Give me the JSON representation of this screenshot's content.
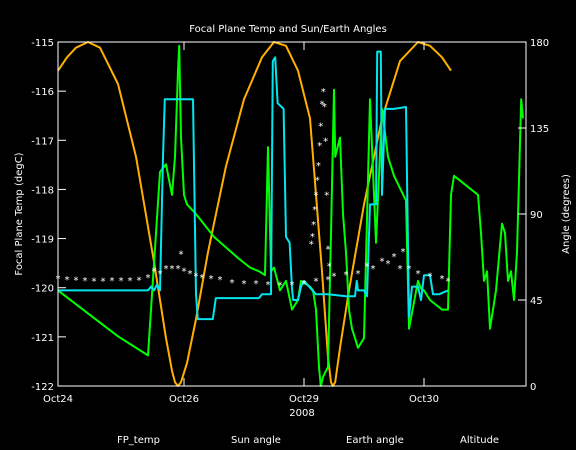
{
  "chart_data": {
    "type": "line",
    "title": "Focal Plane Temp and Sun/Earth Angles",
    "xlabel": "2008",
    "ylabel_left": "Focal Plane Temp (degC)",
    "ylabel_right": "Angle (degrees)",
    "x_range": [
      0,
      7.8
    ],
    "x_ticks": [
      {
        "x": 0.0,
        "label": "Oct24"
      },
      {
        "x": 2.1,
        "label": "Oct26"
      },
      {
        "x": 4.1,
        "label": "Oct29"
      },
      {
        "x": 6.1,
        "label": "Oct30"
      }
    ],
    "ylim_left": [
      -122,
      -115
    ],
    "y_ticks_left": [
      -115,
      -116,
      -117,
      -118,
      -119,
      -120,
      -121,
      -122
    ],
    "y_tick_labels_left": [
      "-115",
      "-116",
      "-117",
      "-118",
      "-119",
      "-120",
      "-121",
      "-122"
    ],
    "ylim_right": [
      0,
      180
    ],
    "y_ticks_right": [
      180,
      135,
      90,
      45,
      0
    ],
    "y_tick_labels_right": [
      "180",
      "135",
      "90",
      "45",
      "0"
    ],
    "grid": false,
    "legend": [
      "FP_temp",
      "Sun angle",
      "Earth angle",
      "Altitude"
    ],
    "colors": {
      "background": "#000000",
      "axes": "#ffffff",
      "fp_temp": "#ffffff",
      "sun": "#00e5ee",
      "earth": "#00ff00",
      "altitude": "#ffb000"
    },
    "series": [
      {
        "name": "FP_temp",
        "axis": "left",
        "style": "markers",
        "points": [
          [
            0,
            -119.8
          ],
          [
            0.15,
            -119.82
          ],
          [
            0.3,
            -119.83
          ],
          [
            0.45,
            -119.84
          ],
          [
            0.6,
            -119.85
          ],
          [
            0.75,
            -119.85
          ],
          [
            0.9,
            -119.84
          ],
          [
            1.05,
            -119.84
          ],
          [
            1.2,
            -119.84
          ],
          [
            1.35,
            -119.83
          ],
          [
            1.5,
            -119.78
          ],
          [
            1.6,
            -119.65
          ],
          [
            1.7,
            -119.7
          ],
          [
            1.8,
            -119.6
          ],
          [
            1.9,
            -119.6
          ],
          [
            2.0,
            -119.6
          ],
          [
            2.05,
            -119.3
          ],
          [
            2.1,
            -119.65
          ],
          [
            2.2,
            -119.7
          ],
          [
            2.3,
            -119.75
          ],
          [
            2.4,
            -119.78
          ],
          [
            2.55,
            -119.8
          ],
          [
            2.7,
            -119.82
          ],
          [
            2.9,
            -119.88
          ],
          [
            3.1,
            -119.9
          ],
          [
            3.3,
            -119.9
          ],
          [
            3.5,
            -119.92
          ],
          [
            3.7,
            -119.93
          ],
          [
            3.9,
            -119.92
          ],
          [
            4.1,
            -119.9
          ],
          [
            4.3,
            -119.85
          ],
          [
            4.5,
            -119.82
          ],
          [
            4.6,
            -119.75
          ],
          [
            4.8,
            -119.72
          ],
          [
            5.0,
            -119.7
          ],
          [
            5.15,
            -119.55
          ],
          [
            5.25,
            -119.6
          ],
          [
            5.4,
            -119.45
          ],
          [
            5.5,
            -119.5
          ],
          [
            5.6,
            -119.35
          ],
          [
            5.7,
            -119.6
          ],
          [
            5.75,
            -119.25
          ],
          [
            5.85,
            -119.6
          ],
          [
            6.0,
            -119.7
          ],
          [
            6.2,
            -119.75
          ],
          [
            6.4,
            -119.8
          ],
          [
            6.5,
            -119.85
          ]
        ]
      },
      {
        "name": "FP_temp_spike",
        "axis": "left",
        "style": "markers",
        "points": [
          [
            4.22,
            -119.1
          ],
          [
            4.24,
            -118.95
          ],
          [
            4.26,
            -118.7
          ],
          [
            4.28,
            -118.4
          ],
          [
            4.3,
            -118.1
          ],
          [
            4.32,
            -117.8
          ],
          [
            4.34,
            -117.5
          ],
          [
            4.36,
            -117.1
          ],
          [
            4.38,
            -116.7
          ],
          [
            4.4,
            -116.25
          ],
          [
            4.42,
            -116.0
          ],
          [
            4.44,
            -116.3
          ],
          [
            4.46,
            -117.0
          ],
          [
            4.48,
            -118.1
          ],
          [
            4.5,
            -119.2
          ],
          [
            4.52,
            -119.55
          ]
        ]
      },
      {
        "name": "Sun angle",
        "axis": "right",
        "style": "line",
        "points": [
          [
            0,
            50
          ],
          [
            1.5,
            50
          ],
          [
            1.55,
            52
          ],
          [
            1.6,
            50
          ],
          [
            1.65,
            53
          ],
          [
            1.7,
            50
          ],
          [
            1.75,
            120
          ],
          [
            1.78,
            150
          ],
          [
            2.25,
            150
          ],
          [
            2.3,
            48
          ],
          [
            2.33,
            35
          ],
          [
            2.58,
            35
          ],
          [
            2.63,
            46
          ],
          [
            3.35,
            46
          ],
          [
            3.4,
            48
          ],
          [
            3.55,
            48
          ],
          [
            3.58,
            170
          ],
          [
            3.62,
            172
          ],
          [
            3.66,
            148
          ],
          [
            3.76,
            145
          ],
          [
            3.8,
            78
          ],
          [
            3.86,
            75
          ],
          [
            3.9,
            51
          ],
          [
            3.92,
            45
          ],
          [
            4.0,
            45
          ],
          [
            4.05,
            52
          ],
          [
            4.1,
            55
          ],
          [
            4.3,
            48
          ],
          [
            4.5,
            48
          ],
          [
            4.8,
            47
          ],
          [
            4.95,
            47
          ],
          [
            4.98,
            55
          ],
          [
            5.0,
            50
          ],
          [
            5.1,
            50
          ],
          [
            5.15,
            47
          ],
          [
            5.2,
            95
          ],
          [
            5.3,
            95
          ],
          [
            5.32,
            175
          ],
          [
            5.38,
            175
          ],
          [
            5.4,
            100
          ],
          [
            5.45,
            145
          ],
          [
            5.6,
            145
          ],
          [
            5.8,
            146
          ],
          [
            5.85,
            36
          ],
          [
            5.9,
            52
          ],
          [
            6.0,
            52
          ],
          [
            6.05,
            45
          ],
          [
            6.1,
            58
          ],
          [
            6.2,
            58
          ],
          [
            6.25,
            48
          ],
          [
            6.35,
            48
          ],
          [
            6.5,
            50
          ]
        ]
      },
      {
        "name": "Earth angle",
        "axis": "right",
        "style": "line",
        "points": [
          [
            0,
            50
          ],
          [
            0.5,
            38
          ],
          [
            1.0,
            26
          ],
          [
            1.5,
            16
          ],
          [
            1.7,
            112
          ],
          [
            1.8,
            116
          ],
          [
            1.9,
            100
          ],
          [
            1.95,
            120
          ],
          [
            2.0,
            165
          ],
          [
            2.02,
            178
          ],
          [
            2.05,
            130
          ],
          [
            2.1,
            100
          ],
          [
            2.15,
            95
          ],
          [
            2.3,
            90
          ],
          [
            2.6,
            78
          ],
          [
            3.0,
            67
          ],
          [
            3.2,
            62
          ],
          [
            3.35,
            60
          ],
          [
            3.45,
            58
          ],
          [
            3.5,
            125
          ],
          [
            3.55,
            60
          ],
          [
            3.6,
            62
          ],
          [
            3.7,
            50
          ],
          [
            3.8,
            55
          ],
          [
            3.9,
            40
          ],
          [
            4.0,
            45
          ],
          [
            4.05,
            55
          ],
          [
            4.2,
            52
          ],
          [
            4.25,
            50
          ],
          [
            4.3,
            40
          ],
          [
            4.35,
            10
          ],
          [
            4.38,
            0
          ],
          [
            4.42,
            5
          ],
          [
            4.5,
            10
          ],
          [
            4.55,
            80
          ],
          [
            4.6,
            155
          ],
          [
            4.62,
            120
          ],
          [
            4.7,
            130
          ],
          [
            4.75,
            90
          ],
          [
            4.8,
            70
          ],
          [
            4.85,
            40
          ],
          [
            4.9,
            30
          ],
          [
            5.0,
            20
          ],
          [
            5.1,
            25
          ],
          [
            5.2,
            150
          ],
          [
            5.3,
            75
          ],
          [
            5.4,
            145
          ],
          [
            5.5,
            120
          ],
          [
            5.6,
            110
          ],
          [
            5.8,
            97
          ],
          [
            5.85,
            30
          ],
          [
            6.0,
            55
          ],
          [
            6.05,
            51
          ],
          [
            6.1,
            50
          ],
          [
            6.2,
            45
          ],
          [
            6.4,
            40
          ],
          [
            6.5,
            40
          ],
          [
            6.55,
            100
          ],
          [
            6.6,
            110
          ],
          [
            6.8,
            105
          ],
          [
            7.0,
            100
          ],
          [
            7.05,
            80
          ],
          [
            7.1,
            55
          ],
          [
            7.15,
            60
          ],
          [
            7.2,
            30
          ],
          [
            7.3,
            50
          ],
          [
            7.4,
            85
          ],
          [
            7.45,
            80
          ],
          [
            7.5,
            55
          ],
          [
            7.55,
            60
          ],
          [
            7.6,
            45
          ],
          [
            7.65,
            70
          ],
          [
            7.72,
            150
          ],
          [
            7.75,
            140
          ]
        ]
      },
      {
        "name": "Altitude",
        "axis": "right",
        "style": "line",
        "points": [
          [
            0,
            165
          ],
          [
            0.15,
            172
          ],
          [
            0.3,
            177
          ],
          [
            0.5,
            180
          ],
          [
            0.7,
            177
          ],
          [
            1.0,
            158
          ],
          [
            1.3,
            120
          ],
          [
            1.6,
            65
          ],
          [
            1.8,
            25
          ],
          [
            1.9,
            8
          ],
          [
            1.95,
            2
          ],
          [
            2.0,
            0
          ],
          [
            2.05,
            2
          ],
          [
            2.15,
            12
          ],
          [
            2.3,
            35
          ],
          [
            2.5,
            70
          ],
          [
            2.8,
            115
          ],
          [
            3.1,
            150
          ],
          [
            3.4,
            172
          ],
          [
            3.6,
            180
          ],
          [
            3.8,
            178
          ],
          [
            4.0,
            165
          ],
          [
            4.2,
            140
          ],
          [
            4.4,
            60
          ],
          [
            4.5,
            15
          ],
          [
            4.55,
            2
          ],
          [
            4.58,
            0
          ],
          [
            4.62,
            2
          ],
          [
            4.7,
            20
          ],
          [
            4.85,
            50
          ],
          [
            5.1,
            95
          ],
          [
            5.4,
            140
          ],
          [
            5.7,
            170
          ],
          [
            6.0,
            180
          ],
          [
            6.2,
            178
          ],
          [
            6.4,
            172
          ],
          [
            6.55,
            165
          ]
        ]
      }
    ]
  }
}
